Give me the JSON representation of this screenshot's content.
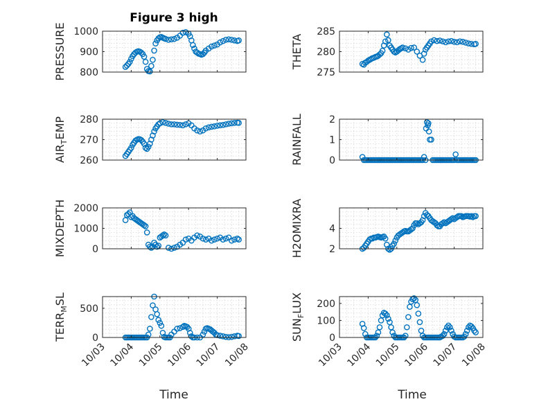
{
  "figure_title": "Figure 3 high",
  "x_axis_label": "Time",
  "x_tick_labels": [
    "10/03",
    "10/04",
    "10/05",
    "10/06",
    "10/07",
    "10/08"
  ],
  "marker_color": "#0072BD",
  "chart_data": [
    {
      "type": "scatter",
      "ylabel": "PRESSURE",
      "title": "Figure 3 high",
      "xlim": [
        0,
        5
      ],
      "ylim": [
        800,
        1000
      ],
      "yticks": [
        800,
        900,
        1000
      ],
      "x": [
        0.8,
        0.85,
        0.9,
        0.95,
        1.0,
        1.05,
        1.1,
        1.15,
        1.2,
        1.25,
        1.3,
        1.35,
        1.4,
        1.45,
        1.5,
        1.55,
        1.6,
        1.65,
        1.7,
        1.75,
        1.8,
        1.85,
        1.9,
        1.95,
        2.0,
        2.05,
        2.1,
        2.15,
        2.2,
        2.3,
        2.4,
        2.5,
        2.6,
        2.7,
        2.8,
        2.9,
        3.0,
        3.05,
        3.1,
        3.15,
        3.2,
        3.25,
        3.3,
        3.35,
        3.4,
        3.45,
        3.5,
        3.55,
        3.6,
        3.7,
        3.8,
        3.9,
        4.0,
        4.1,
        4.2,
        4.3,
        4.4,
        4.5,
        4.6,
        4.7,
        4.75
      ],
      "y": [
        825,
        832,
        840,
        850,
        865,
        878,
        888,
        895,
        900,
        902,
        900,
        895,
        888,
        875,
        850,
        815,
        805,
        803,
        830,
        860,
        905,
        940,
        955,
        965,
        970,
        972,
        968,
        965,
        962,
        958,
        960,
        962,
        968,
        978,
        992,
        995,
        988,
        975,
        955,
        932,
        915,
        900,
        895,
        890,
        888,
        885,
        888,
        895,
        905,
        915,
        925,
        930,
        935,
        945,
        952,
        958,
        960,
        958,
        955,
        952,
        955
      ]
    },
    {
      "type": "scatter",
      "ylabel": "THETA",
      "xlim": [
        0,
        5
      ],
      "ylim": [
        275,
        285
      ],
      "yticks": [
        275,
        280,
        285
      ],
      "x": [
        0.8,
        0.85,
        0.9,
        0.95,
        1.0,
        1.05,
        1.1,
        1.15,
        1.2,
        1.25,
        1.3,
        1.35,
        1.4,
        1.45,
        1.5,
        1.55,
        1.6,
        1.65,
        1.7,
        1.75,
        1.8,
        1.85,
        1.9,
        1.95,
        2.0,
        2.05,
        2.1,
        2.15,
        2.2,
        2.3,
        2.4,
        2.5,
        2.6,
        2.7,
        2.8,
        2.9,
        2.95,
        3.0,
        3.05,
        3.1,
        3.15,
        3.2,
        3.3,
        3.4,
        3.5,
        3.6,
        3.7,
        3.8,
        3.9,
        4.0,
        4.1,
        4.2,
        4.3,
        4.4,
        4.5,
        4.6,
        4.7,
        4.75
      ],
      "y": [
        277,
        276.8,
        277.3,
        277.5,
        277.8,
        278,
        278.2,
        278.4,
        278.5,
        278.7,
        278.8,
        279,
        279.3,
        279.6,
        280.2,
        281.5,
        282.5,
        284.2,
        282.8,
        281.5,
        281,
        280.5,
        280,
        279.8,
        280,
        280.3,
        280.6,
        280.8,
        281,
        280.8,
        280.5,
        280.9,
        281,
        280,
        279,
        278,
        279.5,
        280.5,
        281,
        281.5,
        282,
        282.5,
        282.8,
        282.6,
        282.7,
        282.5,
        282.3,
        282.5,
        282.6,
        282.4,
        282.3,
        282.5,
        282.4,
        282.2,
        282,
        281.9,
        281.8,
        281.9
      ]
    },
    {
      "type": "scatter",
      "ylabel": "AIR_TEMP",
      "ylabel_parts": [
        "AIR",
        "T",
        "EMP"
      ],
      "xlim": [
        0,
        5
      ],
      "ylim": [
        260,
        280
      ],
      "yticks": [
        260,
        270,
        280
      ],
      "x": [
        0.8,
        0.85,
        0.9,
        0.95,
        1.0,
        1.05,
        1.1,
        1.15,
        1.2,
        1.25,
        1.3,
        1.35,
        1.4,
        1.45,
        1.5,
        1.55,
        1.6,
        1.65,
        1.7,
        1.75,
        1.8,
        1.85,
        1.9,
        1.95,
        2.0,
        2.1,
        2.2,
        2.3,
        2.4,
        2.5,
        2.6,
        2.7,
        2.8,
        2.9,
        3.0,
        3.1,
        3.2,
        3.3,
        3.4,
        3.5,
        3.6,
        3.7,
        3.8,
        3.9,
        4.0,
        4.1,
        4.2,
        4.3,
        4.4,
        4.5,
        4.6,
        4.7,
        4.75
      ],
      "y": [
        262,
        263,
        264,
        265,
        266,
        267.5,
        268.5,
        269.5,
        270,
        270.3,
        270.2,
        269.8,
        269,
        268,
        266,
        265.5,
        266.5,
        268,
        270,
        272,
        274,
        275.5,
        276.5,
        277.5,
        278,
        278.5,
        278.2,
        277.8,
        277.5,
        277.5,
        277.3,
        277.2,
        277,
        277.5,
        278,
        277,
        275.5,
        274.5,
        274,
        274.5,
        275.5,
        276,
        276.3,
        276.5,
        276.8,
        277,
        277.2,
        277.5,
        277.8,
        278,
        278.2,
        278.3,
        278.2
      ]
    },
    {
      "type": "scatter",
      "ylabel": "RAINFALL",
      "xlim": [
        0,
        5
      ],
      "ylim": [
        0,
        2
      ],
      "yticks": [
        0,
        1,
        2
      ],
      "x": [
        0.8,
        0.85,
        0.9,
        0.95,
        1.0,
        1.05,
        1.1,
        1.15,
        1.2,
        1.25,
        1.3,
        1.35,
        1.4,
        1.45,
        1.5,
        1.55,
        1.6,
        1.65,
        1.7,
        1.75,
        1.8,
        1.85,
        1.9,
        1.95,
        2.0,
        2.05,
        2.1,
        2.15,
        2.2,
        2.25,
        2.3,
        2.35,
        2.4,
        2.45,
        2.5,
        2.55,
        2.6,
        2.65,
        2.7,
        2.75,
        2.8,
        2.85,
        2.9,
        2.95,
        3.0,
        3.02,
        3.05,
        3.08,
        3.1,
        3.12,
        3.15,
        3.2,
        3.25,
        3.3,
        3.35,
        3.4,
        3.45,
        3.5,
        3.55,
        3.6,
        3.65,
        3.7,
        3.75,
        3.8,
        3.85,
        3.9,
        3.95,
        4.0,
        4.05,
        4.1,
        4.15,
        4.2,
        4.25,
        4.3,
        4.35,
        4.4,
        4.45,
        4.5,
        4.55,
        4.6,
        4.65,
        4.7,
        4.75
      ],
      "y": [
        0.15,
        0,
        0,
        0,
        0,
        0,
        0,
        0,
        0,
        0,
        0,
        0,
        0,
        0,
        0,
        0,
        0,
        0,
        0,
        0,
        0,
        0,
        0,
        0,
        0,
        0,
        0,
        0,
        0,
        0,
        0,
        0,
        0,
        0,
        0,
        0,
        0,
        0,
        0,
        0,
        0,
        0,
        0,
        0.15,
        0,
        1.55,
        1.85,
        1.7,
        1.8,
        1.4,
        1.0,
        1.0,
        0,
        0,
        0,
        0,
        0,
        0,
        0,
        0,
        0,
        0,
        0,
        0,
        0,
        0,
        0,
        0,
        0.28,
        0,
        0,
        0,
        0,
        0,
        0,
        0,
        0,
        0,
        0,
        0,
        0,
        0,
        0
      ]
    },
    {
      "type": "scatter",
      "ylabel": "MIXDEPTH",
      "xlim": [
        0,
        5
      ],
      "ylim": [
        0,
        2000
      ],
      "yticks": [
        0,
        1000,
        2000
      ],
      "x": [
        0.8,
        0.85,
        0.9,
        0.95,
        1.0,
        1.05,
        1.1,
        1.15,
        1.2,
        1.25,
        1.3,
        1.35,
        1.4,
        1.45,
        1.5,
        1.55,
        1.6,
        1.65,
        1.7,
        1.75,
        1.8,
        1.85,
        1.9,
        1.95,
        2.0,
        2.05,
        2.1,
        2.15,
        2.2,
        2.3,
        2.4,
        2.5,
        2.6,
        2.7,
        2.8,
        2.9,
        3.0,
        3.1,
        3.2,
        3.3,
        3.4,
        3.5,
        3.6,
        3.7,
        3.8,
        3.9,
        4.0,
        4.1,
        4.2,
        4.3,
        4.4,
        4.5,
        4.6,
        4.7,
        4.75
      ],
      "y": [
        1400,
        1650,
        1700,
        1780,
        1550,
        1600,
        1500,
        1450,
        1400,
        1350,
        1300,
        1250,
        1200,
        1150,
        1100,
        800,
        200,
        100,
        50,
        100,
        300,
        200,
        100,
        150,
        550,
        600,
        650,
        700,
        650,
        50,
        0,
        50,
        100,
        200,
        300,
        450,
        500,
        400,
        550,
        650,
        600,
        500,
        450,
        500,
        400,
        450,
        500,
        550,
        450,
        500,
        550,
        400,
        450,
        500,
        450
      ]
    },
    {
      "type": "scatter",
      "ylabel": "H2OMIXRA",
      "xlim": [
        0,
        5
      ],
      "ylim": [
        2,
        6
      ],
      "yticks": [
        2,
        4
      ],
      "x": [
        0.8,
        0.85,
        0.9,
        0.95,
        1.0,
        1.05,
        1.1,
        1.15,
        1.2,
        1.25,
        1.3,
        1.35,
        1.4,
        1.45,
        1.5,
        1.55,
        1.6,
        1.65,
        1.7,
        1.75,
        1.8,
        1.85,
        1.9,
        1.95,
        2.0,
        2.05,
        2.1,
        2.15,
        2.2,
        2.25,
        2.3,
        2.35,
        2.4,
        2.45,
        2.5,
        2.55,
        2.6,
        2.65,
        2.7,
        2.75,
        2.8,
        2.85,
        2.9,
        2.95,
        3.0,
        3.05,
        3.1,
        3.15,
        3.2,
        3.25,
        3.3,
        3.35,
        3.4,
        3.45,
        3.5,
        3.55,
        3.6,
        3.65,
        3.7,
        3.75,
        3.8,
        3.85,
        3.9,
        3.95,
        4.0,
        4.05,
        4.1,
        4.15,
        4.2,
        4.25,
        4.3,
        4.35,
        4.4,
        4.45,
        4.5,
        4.55,
        4.6,
        4.65,
        4.7,
        4.75
      ],
      "y": [
        2.0,
        2.1,
        2.3,
        2.5,
        2.7,
        2.9,
        3.0,
        3.0,
        3.1,
        3.1,
        3.15,
        3.2,
        3.15,
        3.1,
        3.15,
        3.2,
        3.0,
        2.4,
        2.0,
        1.9,
        2.0,
        2.3,
        2.5,
        2.8,
        3.1,
        3.3,
        3.4,
        3.5,
        3.6,
        3.7,
        3.75,
        3.7,
        3.7,
        3.8,
        3.9,
        4.0,
        4.3,
        4.5,
        4.5,
        4.4,
        4.5,
        4.6,
        4.8,
        5.2,
        5.5,
        5.3,
        5.2,
        5.0,
        4.8,
        4.7,
        4.6,
        4.5,
        4.3,
        4.2,
        4.2,
        4.4,
        4.5,
        4.6,
        4.5,
        4.6,
        4.7,
        4.8,
        4.9,
        5.0,
        4.9,
        5.0,
        5.1,
        5.2,
        5.2,
        5.2,
        5.1,
        5.15,
        5.2,
        5.2,
        5.2,
        5.15,
        5.2,
        5.1,
        5.2,
        5.2
      ]
    },
    {
      "type": "scatter",
      "ylabel": "TERR_MSL",
      "ylabel_parts": [
        "TERR",
        "M",
        "SL"
      ],
      "xlim": [
        0,
        5
      ],
      "ylim": [
        0,
        700
      ],
      "yticks": [
        0,
        500
      ],
      "x": [
        0.8,
        0.85,
        0.9,
        0.95,
        1.0,
        1.05,
        1.1,
        1.15,
        1.2,
        1.25,
        1.3,
        1.35,
        1.4,
        1.45,
        1.5,
        1.55,
        1.6,
        1.65,
        1.7,
        1.75,
        1.8,
        1.85,
        1.9,
        1.95,
        2.0,
        2.05,
        2.1,
        2.15,
        2.2,
        2.25,
        2.3,
        2.35,
        2.4,
        2.5,
        2.6,
        2.7,
        2.8,
        2.85,
        2.9,
        2.95,
        3.0,
        3.05,
        3.1,
        3.15,
        3.2,
        3.3,
        3.4,
        3.5,
        3.55,
        3.6,
        3.65,
        3.7,
        3.75,
        3.8,
        3.85,
        3.9,
        3.95,
        4.0,
        4.1,
        4.2,
        4.3,
        4.4,
        4.5,
        4.6,
        4.7,
        4.75
      ],
      "y": [
        0,
        0,
        0,
        0,
        0,
        0,
        0,
        0,
        0,
        0,
        0,
        0,
        0,
        0,
        0,
        0,
        50,
        150,
        350,
        550,
        700,
        480,
        400,
        300,
        250,
        200,
        80,
        10,
        0,
        0,
        0,
        0,
        50,
        100,
        150,
        160,
        180,
        200,
        190,
        180,
        150,
        80,
        20,
        0,
        0,
        0,
        0,
        50,
        100,
        150,
        160,
        150,
        140,
        120,
        100,
        80,
        50,
        40,
        30,
        20,
        10,
        5,
        10,
        20,
        30,
        25
      ]
    },
    {
      "type": "scatter",
      "ylabel": "SUN_FLUX",
      "ylabel_parts": [
        "SUN",
        "F",
        "LUX"
      ],
      "xlim": [
        0,
        5
      ],
      "ylim": [
        0,
        240
      ],
      "yticks": [
        0,
        100,
        200
      ],
      "x": [
        0.8,
        0.85,
        0.9,
        0.95,
        1.0,
        1.05,
        1.1,
        1.15,
        1.2,
        1.25,
        1.3,
        1.35,
        1.4,
        1.45,
        1.5,
        1.55,
        1.6,
        1.65,
        1.7,
        1.75,
        1.8,
        1.85,
        1.9,
        1.95,
        2.0,
        2.05,
        2.1,
        2.15,
        2.2,
        2.25,
        2.3,
        2.35,
        2.4,
        2.45,
        2.5,
        2.55,
        2.6,
        2.65,
        2.7,
        2.75,
        2.8,
        2.85,
        2.9,
        2.95,
        3.0,
        3.05,
        3.1,
        3.15,
        3.2,
        3.25,
        3.3,
        3.35,
        3.4,
        3.45,
        3.5,
        3.55,
        3.6,
        3.65,
        3.7,
        3.75,
        3.8,
        3.85,
        3.9,
        3.95,
        4.0,
        4.05,
        4.1,
        4.15,
        4.2,
        4.25,
        4.3,
        4.35,
        4.4,
        4.45,
        4.5,
        4.55,
        4.6,
        4.65,
        4.7,
        4.75
      ],
      "y": [
        80,
        55,
        20,
        0,
        0,
        0,
        0,
        0,
        0,
        0,
        10,
        30,
        60,
        100,
        130,
        145,
        140,
        130,
        110,
        90,
        60,
        30,
        10,
        0,
        0,
        0,
        0,
        0,
        0,
        0,
        10,
        60,
        120,
        180,
        210,
        225,
        230,
        220,
        190,
        140,
        90,
        40,
        10,
        0,
        0,
        0,
        0,
        0,
        0,
        0,
        0,
        0,
        0,
        0,
        0,
        5,
        10,
        20,
        40,
        60,
        70,
        60,
        40,
        20,
        5,
        0,
        0,
        0,
        0,
        0,
        0,
        5,
        20,
        40,
        60,
        70,
        65,
        55,
        40,
        30
      ]
    }
  ]
}
